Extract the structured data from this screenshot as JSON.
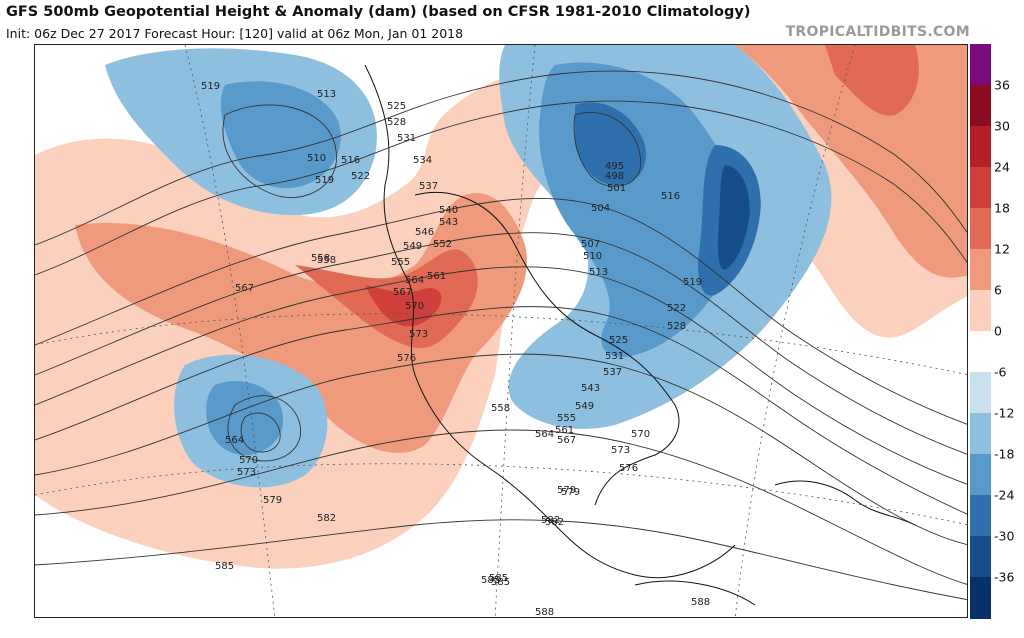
{
  "header": {
    "title": "GFS 500mb Geopotential Height & Anomaly (dam) (based on CFSR 1981-2010 Climatology)",
    "subtitle": "Init: 06z Dec 27 2017   Forecast Hour: [120]   valid at 06z Mon, Jan 01 2018",
    "brand": "TROPICALTIDBITS.COM"
  },
  "colorbar": {
    "ticks": [
      "36",
      "30",
      "24",
      "18",
      "12",
      "6",
      "0",
      "-6",
      "-12",
      "-18",
      "-24",
      "-30",
      "-36"
    ],
    "colors": [
      "#7a0b7e",
      "#8a0c1e",
      "#b3202a",
      "#cf3f3c",
      "#e06a55",
      "#ef9a7c",
      "#fbd0bc",
      "#ffffff",
      "#c9e0ef",
      "#8fbfdf",
      "#5a9acb",
      "#2f6fae",
      "#174d8c",
      "#08306b"
    ]
  },
  "contour_labels": [
    "519",
    "513",
    "510",
    "516",
    "519",
    "522",
    "525",
    "528",
    "531",
    "534",
    "537",
    "540",
    "543",
    "546",
    "549",
    "552",
    "555",
    "558",
    "561",
    "564",
    "567",
    "570",
    "573",
    "576",
    "579",
    "582",
    "585",
    "588",
    "495",
    "498",
    "501",
    "504",
    "507",
    "510",
    "513",
    "516",
    "519",
    "522",
    "525",
    "528",
    "531",
    "537",
    "543",
    "549",
    "555",
    "558",
    "561",
    "564",
    "567",
    "570",
    "573",
    "576",
    "558",
    "567",
    "564",
    "570",
    "573",
    "579",
    "582",
    "585",
    "585",
    "582",
    "579",
    "588",
    "585"
  ]
}
